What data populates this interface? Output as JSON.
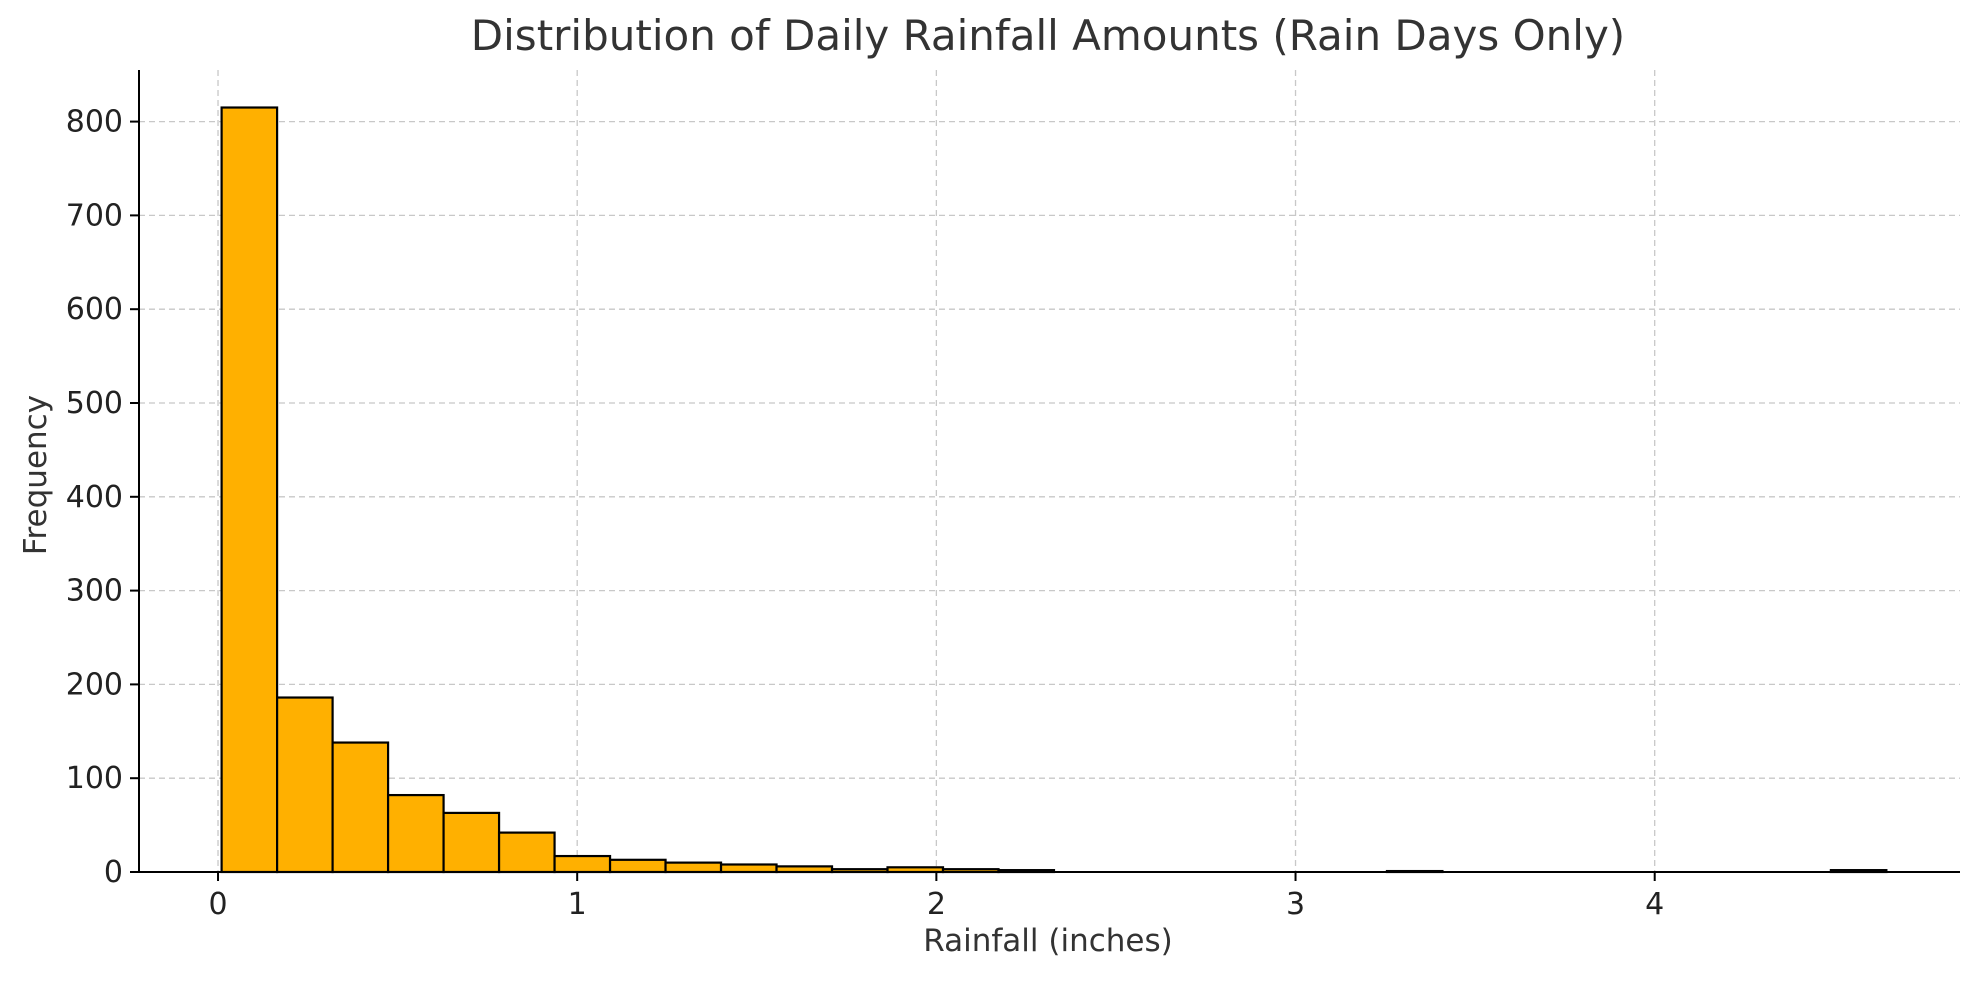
{
  "chart_data": {
    "type": "bar",
    "title": "Distribution of Daily Rainfall Amounts (Rain Days Only)",
    "xlabel": "Rainfall (inches)",
    "ylabel": "Frequency",
    "xlim": [
      -0.22,
      4.85
    ],
    "ylim": [
      0,
      855
    ],
    "x_ticks": [
      0,
      1,
      2,
      3,
      4
    ],
    "y_ticks": [
      0,
      100,
      200,
      300,
      400,
      500,
      600,
      700,
      800
    ],
    "grid": true,
    "bin_start": 0.01,
    "bin_width": 0.1545,
    "values": [
      815,
      186,
      138,
      82,
      63,
      42,
      17,
      13,
      10,
      8,
      6,
      3,
      5,
      3,
      2,
      0,
      0,
      0,
      0,
      0,
      0,
      1,
      0,
      0,
      0,
      0,
      0,
      0,
      0,
      2
    ],
    "bar_color": "#FFB000",
    "edge_color": "#000000",
    "grid_color": "#c8c8c8"
  }
}
